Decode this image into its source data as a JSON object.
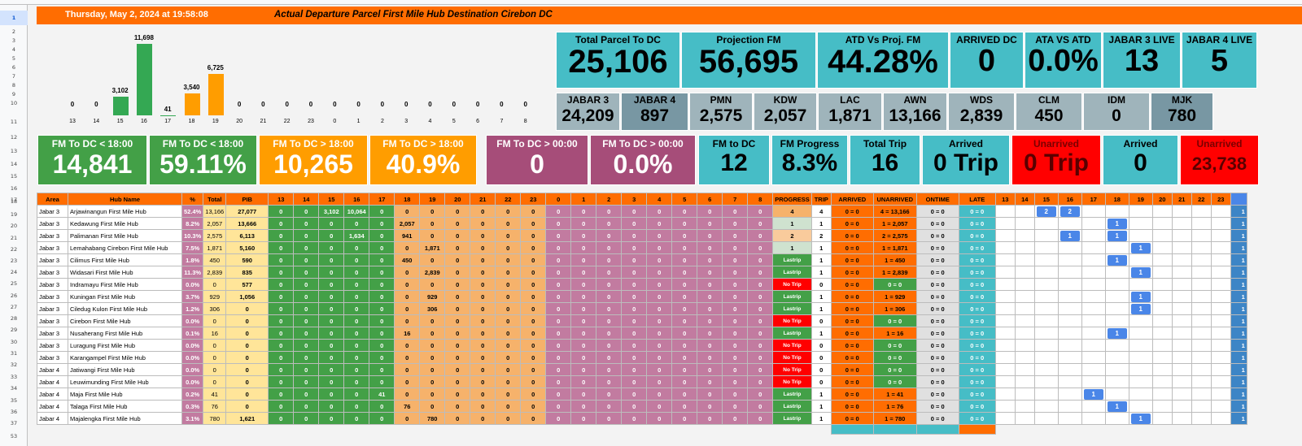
{
  "header": {
    "date": "Thursday, May 2, 2024 at 19:58:08",
    "title": "Actual Departure Parcel First Mile Hub Destination Cirebon DC"
  },
  "row_numbers": [
    "1",
    "2",
    "3",
    "4",
    "5",
    "6",
    "7",
    "8",
    "9",
    "10",
    "11",
    "12",
    "13",
    "14",
    "15",
    "16",
    "17",
    "18",
    "19",
    "20",
    "21",
    "22",
    "23",
    "24",
    "25",
    "26",
    "27",
    "28",
    "29",
    "30",
    "31",
    "32",
    "33",
    "34",
    "35",
    "36",
    "37",
    "53"
  ],
  "chart_data": {
    "type": "bar",
    "categories": [
      "13",
      "14",
      "15",
      "16",
      "17",
      "18",
      "19",
      "20",
      "21",
      "22",
      "23",
      "0",
      "1",
      "2",
      "3",
      "4",
      "5",
      "6",
      "7",
      "8"
    ],
    "values": [
      0,
      0,
      3102,
      11698,
      41,
      3540,
      6725,
      0,
      0,
      0,
      0,
      0,
      0,
      0,
      0,
      0,
      0,
      0,
      0,
      0
    ],
    "labels": [
      "0",
      "0",
      "3,102",
      "11,698",
      "41",
      "3,540",
      "6,725",
      "0",
      "0",
      "0",
      "0",
      "0",
      "0",
      "0",
      "0",
      "0",
      "0",
      "0",
      "0",
      "0"
    ],
    "colors": [
      "#34a853",
      "#34a853",
      "#34a853",
      "#34a853",
      "#34a853",
      "#ff9d00",
      "#ff9d00",
      "#ff9d00",
      "#ff9d00",
      "#ff9d00",
      "#ff9d00",
      "#a64d79",
      "#a64d79",
      "#a64d79",
      "#a64d79",
      "#a64d79",
      "#a64d79",
      "#a64d79",
      "#a64d79",
      "#a64d79"
    ],
    "title": "",
    "xlabel": "",
    "ylabel": ""
  },
  "kpi": [
    {
      "label": "Total Parcel To DC",
      "value": "25,106"
    },
    {
      "label": "Projection FM",
      "value": "56,695"
    },
    {
      "label": "ATD Vs Proj. FM",
      "value": "44.28%"
    },
    {
      "label": "ARRIVED DC",
      "value": "0"
    },
    {
      "label": "ATA VS ATD",
      "value": "0.0%"
    },
    {
      "label": "JABAR 3 LIVE",
      "value": "13"
    },
    {
      "label": "JABAR 4 LIVE",
      "value": "5"
    }
  ],
  "small": [
    {
      "label": "JABAR 3",
      "value": "24,209"
    },
    {
      "label": "JABAR 4",
      "value": "897"
    },
    {
      "label": "PMN",
      "value": "2,575"
    },
    {
      "label": "KDW",
      "value": "2,057"
    },
    {
      "label": "LAC",
      "value": "1,871"
    },
    {
      "label": "AWN",
      "value": "13,166"
    },
    {
      "label": "WDS",
      "value": "2,839"
    },
    {
      "label": "CLM",
      "value": "450"
    },
    {
      "label": "IDM",
      "value": "0"
    },
    {
      "label": "MJK",
      "value": "780"
    }
  ],
  "fm": [
    {
      "label": "FM To DC < 18:00",
      "value": "14,841"
    },
    {
      "label": "FM To DC < 18:00",
      "value": "59.11%"
    },
    {
      "label": "FM To DC > 18:00",
      "value": "10,265"
    },
    {
      "label": "FM To DC > 18:00",
      "value": "40.9%"
    },
    {
      "label": "FM To DC > 00:00",
      "value": "0"
    },
    {
      "label": "FM To DC > 00:00",
      "value": "0.0%"
    },
    {
      "label": "FM to DC",
      "value": "12"
    },
    {
      "label": "FM Progress",
      "value": "8.3%"
    },
    {
      "label": "Total Trip",
      "value": "16"
    },
    {
      "label": "Arrived",
      "value": "0 Trip"
    },
    {
      "label": "Unarrived",
      "value": "0 Trip"
    },
    {
      "label": "Arrived",
      "value": "0"
    },
    {
      "label": "Unarrived",
      "value": "23,738"
    }
  ],
  "table": {
    "headers": [
      "Area",
      "Hub Name",
      "%",
      "Total",
      "PIB",
      "13",
      "14",
      "15",
      "16",
      "17",
      "18",
      "19",
      "20",
      "21",
      "22",
      "23",
      "0",
      "1",
      "2",
      "3",
      "4",
      "5",
      "6",
      "7",
      "8",
      "PROGRESS",
      "TRIP",
      "ARRIVED",
      "UNARRIVED",
      "ONTIME",
      "LATE",
      "13",
      "14",
      "15",
      "16",
      "17",
      "18",
      "19",
      "20",
      "21",
      "22",
      "23",
      ""
    ],
    "rows": [
      {
        "area": "Jabar 3",
        "hub": "Arjawinangun First Mile Hub",
        "pct": "52.4%",
        "total": "13,166",
        "pib": "27,077",
        "h": [
          "0",
          "0",
          "3,102",
          "10,064",
          "0",
          "0",
          "0",
          "0",
          "0",
          "0",
          "0",
          "0",
          "0",
          "0",
          "0",
          "0",
          "0",
          "0",
          "0",
          "0"
        ],
        "progress": "4",
        "trip": "4",
        "arrived": "0 = 0",
        "unarrived": "4 = 13,166",
        "ontime": "0 = 0",
        "late": "0 = 0",
        "t": [
          "",
          "",
          "2",
          "2",
          "",
          "",
          "",
          "",
          "",
          "",
          ""
        ],
        "last": "1"
      },
      {
        "area": "Jabar 3",
        "hub": "Kedawung First Mile Hub",
        "pct": "8.2%",
        "total": "2,057",
        "pib": "13,666",
        "h": [
          "0",
          "0",
          "0",
          "0",
          "0",
          "2,057",
          "0",
          "0",
          "0",
          "0",
          "0",
          "0",
          "0",
          "0",
          "0",
          "0",
          "0",
          "0",
          "0",
          "0"
        ],
        "progress": "1",
        "trip": "1",
        "arrived": "0 = 0",
        "unarrived": "1 = 2,057",
        "ontime": "0 = 0",
        "late": "0 = 0",
        "t": [
          "",
          "",
          "",
          "",
          "",
          "1",
          "",
          "",
          "",
          "",
          ""
        ],
        "last": "1"
      },
      {
        "area": "Jabar 3",
        "hub": "Palimanan First Mile Hub",
        "pct": "10.3%",
        "total": "2,575",
        "pib": "6,113",
        "h": [
          "0",
          "0",
          "0",
          "1,634",
          "0",
          "941",
          "0",
          "0",
          "0",
          "0",
          "0",
          "0",
          "0",
          "0",
          "0",
          "0",
          "0",
          "0",
          "0",
          "0"
        ],
        "progress": "2",
        "trip": "2",
        "arrived": "0 = 0",
        "unarrived": "2 = 2,575",
        "ontime": "0 = 0",
        "late": "0 = 0",
        "t": [
          "",
          "",
          "",
          "1",
          "",
          "1",
          "",
          "",
          "",
          "",
          ""
        ],
        "last": "1"
      },
      {
        "area": "Jabar 3",
        "hub": "Lemahabang Cirebon First Mile Hub",
        "pct": "7.5%",
        "total": "1,871",
        "pib": "5,160",
        "h": [
          "0",
          "0",
          "0",
          "0",
          "0",
          "0",
          "1,871",
          "0",
          "0",
          "0",
          "0",
          "0",
          "0",
          "0",
          "0",
          "0",
          "0",
          "0",
          "0",
          "0"
        ],
        "progress": "1",
        "trip": "1",
        "arrived": "0 = 0",
        "unarrived": "1 = 1,871",
        "ontime": "0 = 0",
        "late": "0 = 0",
        "t": [
          "",
          "",
          "",
          "",
          "",
          "",
          "1",
          "",
          "",
          "",
          ""
        ],
        "last": "1"
      },
      {
        "area": "Jabar 3",
        "hub": "Cilimus First Mile Hub",
        "pct": "1.8%",
        "total": "450",
        "pib": "590",
        "h": [
          "0",
          "0",
          "0",
          "0",
          "0",
          "450",
          "0",
          "0",
          "0",
          "0",
          "0",
          "0",
          "0",
          "0",
          "0",
          "0",
          "0",
          "0",
          "0",
          "0"
        ],
        "progress": "Lastrip",
        "trip": "1",
        "arrived": "0 = 0",
        "unarrived": "1 = 450",
        "ontime": "0 = 0",
        "late": "0 = 0",
        "t": [
          "",
          "",
          "",
          "",
          "",
          "1",
          "",
          "",
          "",
          "",
          ""
        ],
        "last": "1"
      },
      {
        "area": "Jabar 3",
        "hub": "Widasari First Mile Hub",
        "pct": "11.3%",
        "total": "2,839",
        "pib": "835",
        "h": [
          "0",
          "0",
          "0",
          "0",
          "0",
          "0",
          "2,839",
          "0",
          "0",
          "0",
          "0",
          "0",
          "0",
          "0",
          "0",
          "0",
          "0",
          "0",
          "0",
          "0"
        ],
        "progress": "Lastrip",
        "trip": "1",
        "arrived": "0 = 0",
        "unarrived": "1 = 2,839",
        "ontime": "0 = 0",
        "late": "0 = 0",
        "t": [
          "",
          "",
          "",
          "",
          "",
          "",
          "1",
          "",
          "",
          "",
          ""
        ],
        "last": "1"
      },
      {
        "area": "Jabar 3",
        "hub": "Indramayu First Mile Hub",
        "pct": "0.0%",
        "total": "0",
        "pib": "577",
        "h": [
          "0",
          "0",
          "0",
          "0",
          "0",
          "0",
          "0",
          "0",
          "0",
          "0",
          "0",
          "0",
          "0",
          "0",
          "0",
          "0",
          "0",
          "0",
          "0",
          "0"
        ],
        "progress": "No Trip",
        "trip": "0",
        "arrived": "0 = 0",
        "unarrived": "0 = 0",
        "ontime": "0 = 0",
        "late": "0 = 0",
        "t": [
          "",
          "",
          "",
          "",
          "",
          "",
          "",
          "",
          "",
          "",
          ""
        ],
        "last": "1"
      },
      {
        "area": "Jabar 3",
        "hub": "Kuningan First Mile Hub",
        "pct": "3.7%",
        "total": "929",
        "pib": "1,056",
        "h": [
          "0",
          "0",
          "0",
          "0",
          "0",
          "0",
          "929",
          "0",
          "0",
          "0",
          "0",
          "0",
          "0",
          "0",
          "0",
          "0",
          "0",
          "0",
          "0",
          "0"
        ],
        "progress": "Lastrip",
        "trip": "1",
        "arrived": "0 = 0",
        "unarrived": "1 = 929",
        "ontime": "0 = 0",
        "late": "0 = 0",
        "t": [
          "",
          "",
          "",
          "",
          "",
          "",
          "1",
          "",
          "",
          "",
          ""
        ],
        "last": "1"
      },
      {
        "area": "Jabar 3",
        "hub": "Ciledug Kulon First Mile Hub",
        "pct": "1.2%",
        "total": "306",
        "pib": "0",
        "h": [
          "0",
          "0",
          "0",
          "0",
          "0",
          "0",
          "306",
          "0",
          "0",
          "0",
          "0",
          "0",
          "0",
          "0",
          "0",
          "0",
          "0",
          "0",
          "0",
          "0"
        ],
        "progress": "Lastrip",
        "trip": "1",
        "arrived": "0 = 0",
        "unarrived": "1 = 306",
        "ontime": "0 = 0",
        "late": "0 = 0",
        "t": [
          "",
          "",
          "",
          "",
          "",
          "",
          "1",
          "",
          "",
          "",
          ""
        ],
        "last": "1"
      },
      {
        "area": "Jabar 3",
        "hub": "Cirebon First Mile Hub",
        "pct": "0.0%",
        "total": "0",
        "pib": "0",
        "h": [
          "0",
          "0",
          "0",
          "0",
          "0",
          "0",
          "0",
          "0",
          "0",
          "0",
          "0",
          "0",
          "0",
          "0",
          "0",
          "0",
          "0",
          "0",
          "0",
          "0"
        ],
        "progress": "No Trip",
        "trip": "0",
        "arrived": "0 = 0",
        "unarrived": "0 = 0",
        "ontime": "0 = 0",
        "late": "0 = 0",
        "t": [
          "",
          "",
          "",
          "",
          "",
          "",
          "",
          "",
          "",
          "",
          ""
        ],
        "last": "1"
      },
      {
        "area": "Jabar 3",
        "hub": "Nusaherang First Mile Hub",
        "pct": "0.1%",
        "total": "16",
        "pib": "0",
        "h": [
          "0",
          "0",
          "0",
          "0",
          "0",
          "16",
          "0",
          "0",
          "0",
          "0",
          "0",
          "0",
          "0",
          "0",
          "0",
          "0",
          "0",
          "0",
          "0",
          "0"
        ],
        "progress": "Lastrip",
        "trip": "1",
        "arrived": "0 = 0",
        "unarrived": "1 = 16",
        "ontime": "0 = 0",
        "late": "0 = 0",
        "t": [
          "",
          "",
          "",
          "",
          "",
          "1",
          "",
          "",
          "",
          "",
          ""
        ],
        "last": "1"
      },
      {
        "area": "Jabar 3",
        "hub": "Luragung First Mile Hub",
        "pct": "0.0%",
        "total": "0",
        "pib": "0",
        "h": [
          "0",
          "0",
          "0",
          "0",
          "0",
          "0",
          "0",
          "0",
          "0",
          "0",
          "0",
          "0",
          "0",
          "0",
          "0",
          "0",
          "0",
          "0",
          "0",
          "0"
        ],
        "progress": "No Trip",
        "trip": "0",
        "arrived": "0 = 0",
        "unarrived": "0 = 0",
        "ontime": "0 = 0",
        "late": "0 = 0",
        "t": [
          "",
          "",
          "",
          "",
          "",
          "",
          "",
          "",
          "",
          "",
          ""
        ],
        "last": "1"
      },
      {
        "area": "Jabar 3",
        "hub": "Karangampel First Mile Hub",
        "pct": "0.0%",
        "total": "0",
        "pib": "0",
        "h": [
          "0",
          "0",
          "0",
          "0",
          "0",
          "0",
          "0",
          "0",
          "0",
          "0",
          "0",
          "0",
          "0",
          "0",
          "0",
          "0",
          "0",
          "0",
          "0",
          "0"
        ],
        "progress": "No Trip",
        "trip": "0",
        "arrived": "0 = 0",
        "unarrived": "0 = 0",
        "ontime": "0 = 0",
        "late": "0 = 0",
        "t": [
          "",
          "",
          "",
          "",
          "",
          "",
          "",
          "",
          "",
          "",
          ""
        ],
        "last": "1"
      },
      {
        "area": "Jabar 4",
        "hub": "Jatiwangi First Mile Hub",
        "pct": "0.0%",
        "total": "0",
        "pib": "0",
        "h": [
          "0",
          "0",
          "0",
          "0",
          "0",
          "0",
          "0",
          "0",
          "0",
          "0",
          "0",
          "0",
          "0",
          "0",
          "0",
          "0",
          "0",
          "0",
          "0",
          "0"
        ],
        "progress": "No Trip",
        "trip": "0",
        "arrived": "0 = 0",
        "unarrived": "0 = 0",
        "ontime": "0 = 0",
        "late": "0 = 0",
        "t": [
          "",
          "",
          "",
          "",
          "",
          "",
          "",
          "",
          "",
          "",
          ""
        ],
        "last": "1"
      },
      {
        "area": "Jabar 4",
        "hub": "Leuwimunding First Mile Hub",
        "pct": "0.0%",
        "total": "0",
        "pib": "0",
        "h": [
          "0",
          "0",
          "0",
          "0",
          "0",
          "0",
          "0",
          "0",
          "0",
          "0",
          "0",
          "0",
          "0",
          "0",
          "0",
          "0",
          "0",
          "0",
          "0",
          "0"
        ],
        "progress": "No Trip",
        "trip": "0",
        "arrived": "0 = 0",
        "unarrived": "0 = 0",
        "ontime": "0 = 0",
        "late": "0 = 0",
        "t": [
          "",
          "",
          "",
          "",
          "",
          "",
          "",
          "",
          "",
          "",
          ""
        ],
        "last": "1"
      },
      {
        "area": "Jabar 4",
        "hub": "Maja First Mile Hub",
        "pct": "0.2%",
        "total": "41",
        "pib": "0",
        "h": [
          "0",
          "0",
          "0",
          "0",
          "41",
          "0",
          "0",
          "0",
          "0",
          "0",
          "0",
          "0",
          "0",
          "0",
          "0",
          "0",
          "0",
          "0",
          "0",
          "0"
        ],
        "progress": "Lastrip",
        "trip": "1",
        "arrived": "0 = 0",
        "unarrived": "1 = 41",
        "ontime": "0 = 0",
        "late": "0 = 0",
        "t": [
          "",
          "",
          "",
          "",
          "1",
          "",
          "",
          "",
          "",
          "",
          ""
        ],
        "last": "1"
      },
      {
        "area": "Jabar 4",
        "hub": "Talaga First Mile Hub",
        "pct": "0.3%",
        "total": "76",
        "pib": "0",
        "h": [
          "0",
          "0",
          "0",
          "0",
          "0",
          "76",
          "0",
          "0",
          "0",
          "0",
          "0",
          "0",
          "0",
          "0",
          "0",
          "0",
          "0",
          "0",
          "0",
          "0"
        ],
        "progress": "Lastrip",
        "trip": "1",
        "arrived": "0 = 0",
        "unarrived": "1 = 76",
        "ontime": "0 = 0",
        "late": "0 = 0",
        "t": [
          "",
          "",
          "",
          "",
          "",
          "1",
          "",
          "",
          "",
          "",
          ""
        ],
        "last": "1"
      },
      {
        "area": "Jabar 4",
        "hub": "Majalengka First Mile Hub",
        "pct": "3.1%",
        "total": "780",
        "pib": "1,621",
        "h": [
          "0",
          "0",
          "0",
          "0",
          "0",
          "0",
          "780",
          "0",
          "0",
          "0",
          "0",
          "0",
          "0",
          "0",
          "0",
          "0",
          "0",
          "0",
          "0",
          "0"
        ],
        "progress": "Lastrip",
        "trip": "1",
        "arrived": "0 = 0",
        "unarrived": "1 = 780",
        "ontime": "0 = 0",
        "late": "0 = 0",
        "t": [
          "",
          "",
          "",
          "",
          "",
          "",
          "1",
          "",
          "",
          "",
          ""
        ],
        "last": "1"
      }
    ]
  }
}
